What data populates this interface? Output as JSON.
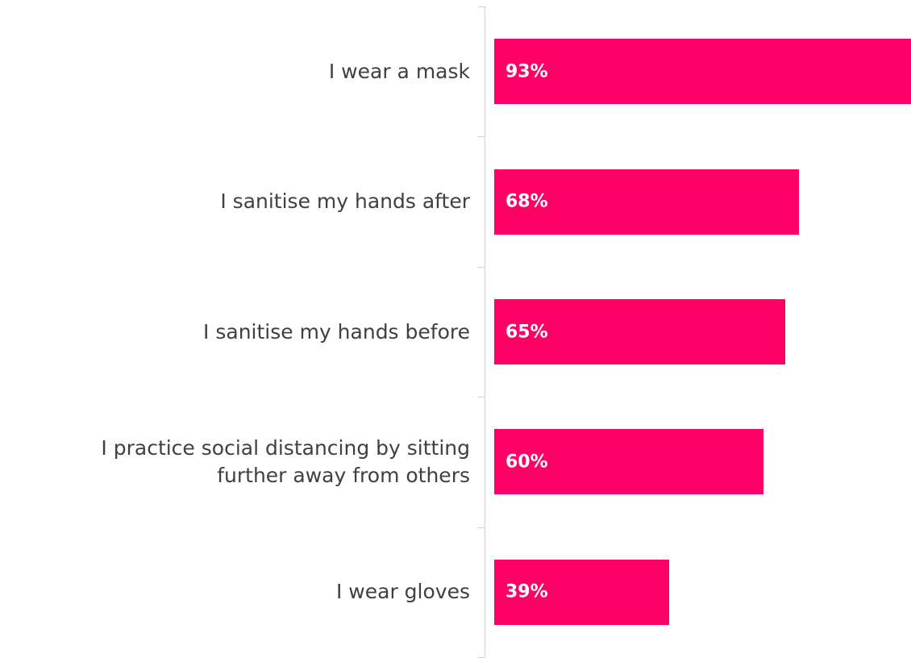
{
  "chart_data": {
    "type": "bar",
    "orientation": "horizontal",
    "categories": [
      "I wear a mask",
      "I sanitise my hands after",
      "I sanitise my hands before",
      "I practice social distancing by sitting\nfurther away from others",
      "I wear gloves"
    ],
    "values": [
      93,
      68,
      65,
      60,
      39
    ],
    "value_labels": [
      "93%",
      "68%",
      "65%",
      "60%",
      "39%"
    ],
    "color": "#ff0066"
  }
}
